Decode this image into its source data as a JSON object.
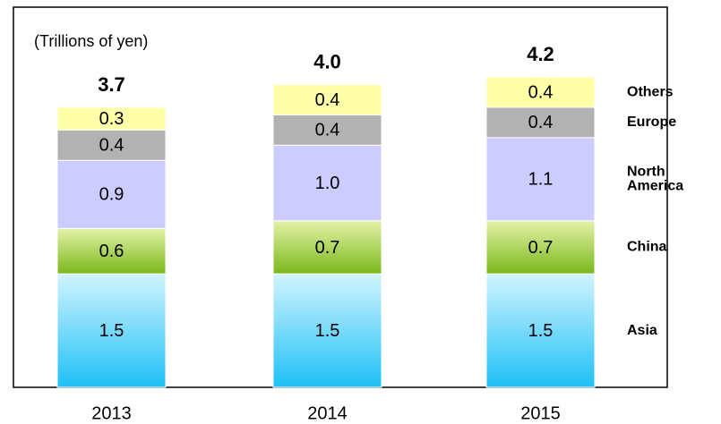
{
  "chart_data": {
    "type": "stacked-bar",
    "subtitle": "(Trillions of yen)",
    "categories": [
      "2013",
      "2014",
      "2015"
    ],
    "total_labels": [
      "3.7",
      "4.0",
      "4.2"
    ],
    "series": [
      {
        "name": "Asia",
        "color": "#3cc6f6",
        "values": [
          1.5,
          1.5,
          1.5
        ],
        "value_labels": [
          "1.5",
          "1.5",
          "1.5"
        ]
      },
      {
        "name": "China",
        "color": "#8cc21c",
        "values": [
          0.6,
          0.7,
          0.7
        ],
        "value_labels": [
          "0.6",
          "0.7",
          "0.7"
        ]
      },
      {
        "name": "North America",
        "color": "#ccccff",
        "values": [
          0.9,
          1.0,
          1.1
        ],
        "value_labels": [
          "0.9",
          "1.0",
          "1.1"
        ]
      },
      {
        "name": "Europe",
        "color": "#b2b2b2",
        "values": [
          0.4,
          0.4,
          0.4
        ],
        "value_labels": [
          "0.4",
          "0.4",
          "0.4"
        ]
      },
      {
        "name": "Others",
        "color": "#ffffa8",
        "values": [
          0.3,
          0.4,
          0.4
        ],
        "value_labels": [
          "0.3",
          "0.4",
          "0.4"
        ]
      }
    ]
  }
}
